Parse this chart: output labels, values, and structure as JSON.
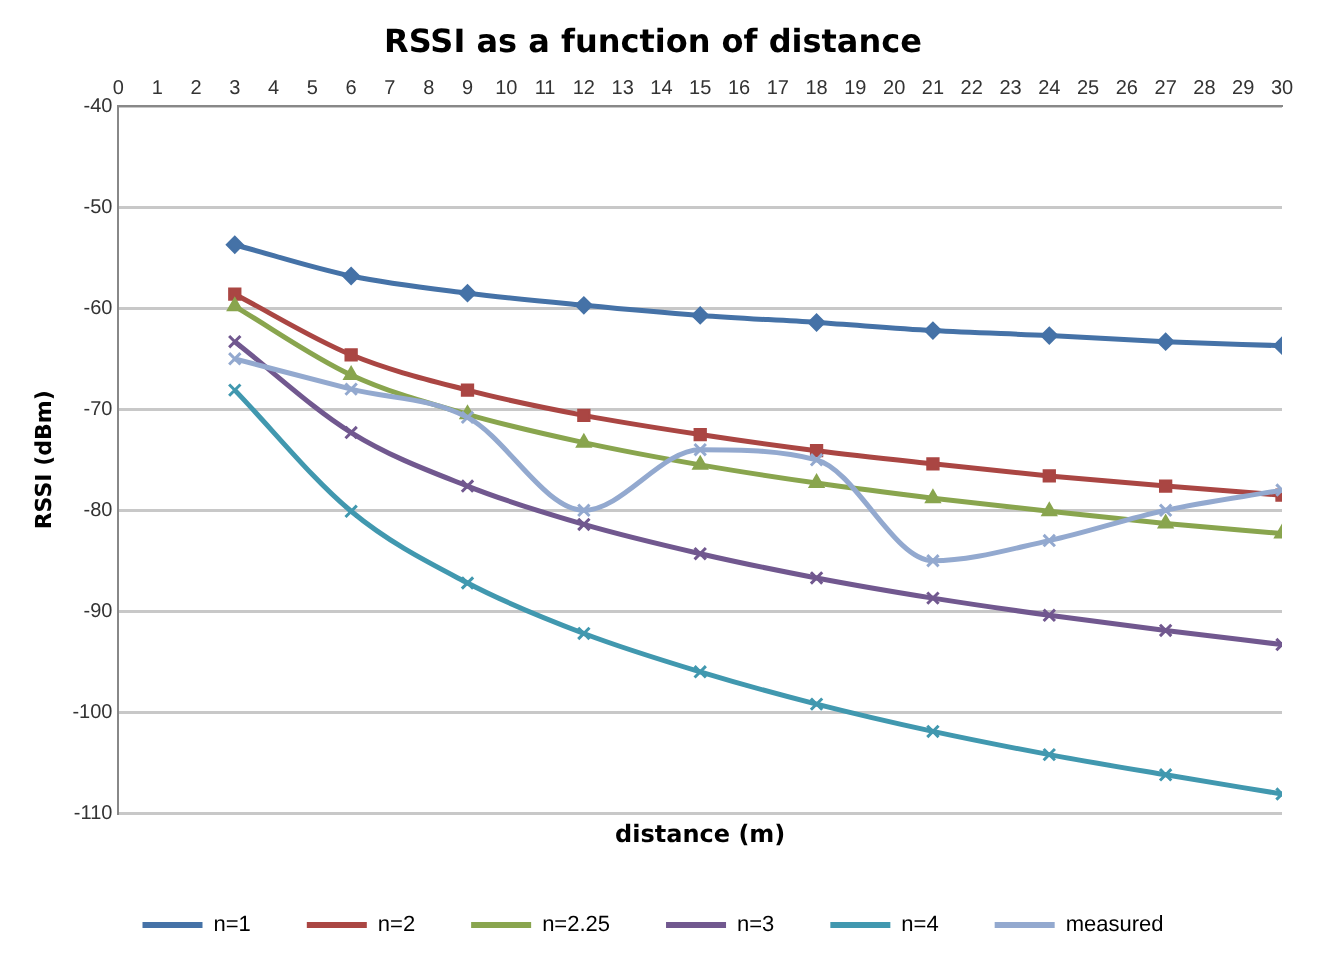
{
  "chart_data": {
    "type": "line",
    "title": "RSSI as a function of distance",
    "xlabel": "distance (m)",
    "ylabel": "RSSI (dBm)",
    "x": [
      3,
      6,
      9,
      12,
      15,
      18,
      21,
      24,
      27,
      30
    ],
    "xlim": [
      0,
      30
    ],
    "xticks": [
      0,
      1,
      2,
      3,
      4,
      5,
      6,
      7,
      8,
      9,
      10,
      11,
      12,
      13,
      14,
      15,
      16,
      17,
      18,
      19,
      20,
      21,
      22,
      23,
      24,
      25,
      26,
      27,
      28,
      29,
      30
    ],
    "ylim": [
      -110,
      -40
    ],
    "yticks": [
      -110,
      -100,
      -90,
      -80,
      -70,
      -60,
      -50,
      -40
    ],
    "grid": "y",
    "legend": "bottom",
    "series": [
      {
        "name": "n=1",
        "color": "#4572a7",
        "marker": "diamond",
        "values": [
          -53.7,
          -56.8,
          -58.5,
          -59.7,
          -60.7,
          -61.4,
          -62.2,
          -62.7,
          -63.3,
          -63.7
        ]
      },
      {
        "name": "n=2",
        "color": "#aa4643",
        "marker": "square",
        "values": [
          -58.6,
          -64.6,
          -68.1,
          -70.6,
          -72.5,
          -74.1,
          -75.4,
          -76.6,
          -77.6,
          -78.5
        ]
      },
      {
        "name": "n=2.25",
        "color": "#89a54e",
        "marker": "triangle",
        "values": [
          -59.8,
          -66.6,
          -70.5,
          -73.3,
          -75.5,
          -77.3,
          -78.8,
          -80.1,
          -81.3,
          -82.3
        ]
      },
      {
        "name": "n=3",
        "color": "#71588f",
        "marker": "cross",
        "values": [
          -63.3,
          -72.3,
          -77.6,
          -81.4,
          -84.3,
          -86.7,
          -88.7,
          -90.4,
          -91.9,
          -93.3
        ]
      },
      {
        "name": "n=4",
        "color": "#4198af",
        "marker": "cross",
        "values": [
          -68.1,
          -80.1,
          -87.2,
          -92.2,
          -96.0,
          -99.2,
          -101.9,
          -104.2,
          -106.2,
          -108.1
        ]
      },
      {
        "name": "measured",
        "color": "#93a9cf",
        "marker": "cross",
        "values": [
          -65,
          -68,
          -70.8,
          -80,
          -74,
          -75,
          -85,
          -83,
          -80,
          -78
        ]
      }
    ]
  }
}
